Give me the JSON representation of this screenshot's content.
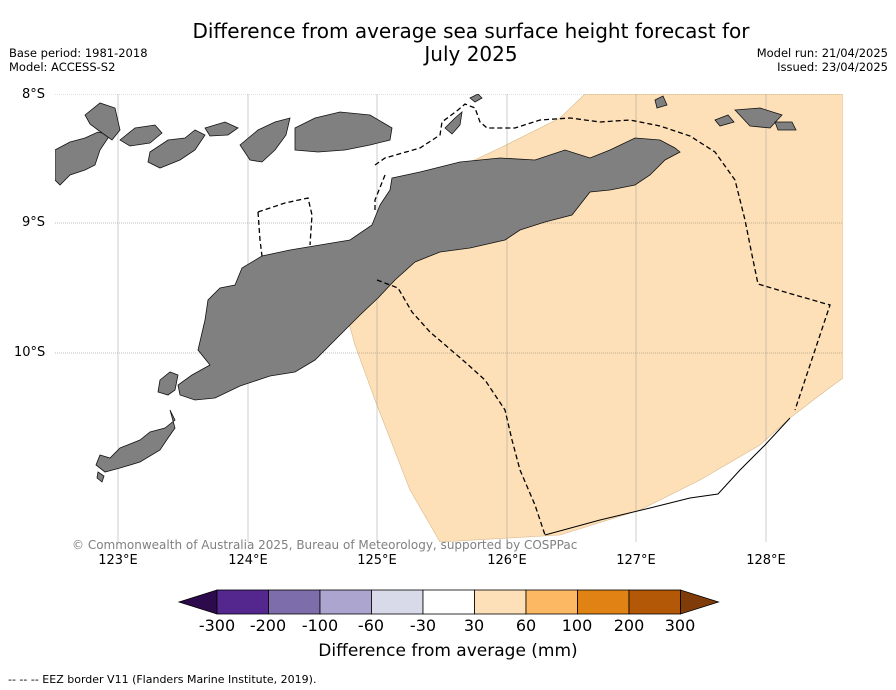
{
  "header": {
    "title_line1": "Difference from average sea surface height forecast for",
    "title_line2": "July 2025",
    "base_period": "Base period: 1981-2018",
    "model": "Model: ACCESS-S2",
    "model_run": "Model run: 21/04/2025",
    "issued": "Issued: 23/04/2025"
  },
  "map": {
    "lat_labels": [
      "8°S",
      "9°S",
      "10°S"
    ],
    "lon_labels": [
      "123°E",
      "124°E",
      "125°E",
      "126°E",
      "127°E",
      "128°E"
    ],
    "land_color": "#808080",
    "anomaly_fill_color": "#fde0b7",
    "ocean_color": "#ffffff",
    "copyright": "© Commonwealth of Australia 2025, Bureau of Meteorology, supported by COSPPac"
  },
  "colorbar": {
    "ticks": [
      "-300",
      "-200",
      "-100",
      "-60",
      "-30",
      "30",
      "60",
      "100",
      "200",
      "300"
    ],
    "colors": [
      "#2d0a4b",
      "#54278f",
      "#7d6dab",
      "#aca5cf",
      "#d9dae9",
      "#ffffff",
      "#fde0b7",
      "#fdb863",
      "#e08214",
      "#b35806",
      "#7f3b08"
    ],
    "label": "Difference from average (mm)"
  },
  "footnote": "--  --  -- EEZ border V11 (Flanders Marine Institute, 2019)."
}
